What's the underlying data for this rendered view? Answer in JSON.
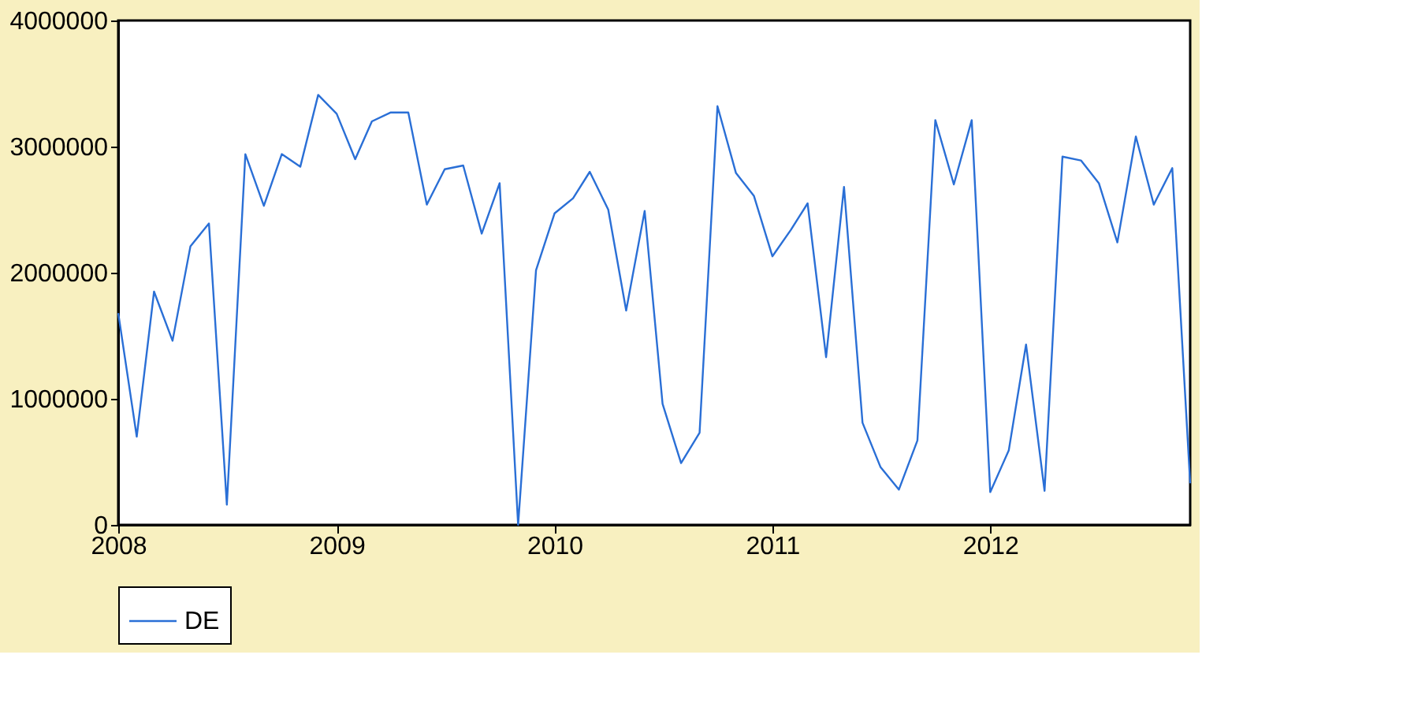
{
  "chart_data": {
    "type": "line",
    "x": [
      "2008-01",
      "2008-02",
      "2008-03",
      "2008-04",
      "2008-05",
      "2008-06",
      "2008-07",
      "2008-08",
      "2008-09",
      "2008-10",
      "2008-11",
      "2008-12",
      "2009-01",
      "2009-02",
      "2009-03",
      "2009-04",
      "2009-05",
      "2009-06",
      "2009-07",
      "2009-08",
      "2009-09",
      "2009-10",
      "2009-11",
      "2009-12",
      "2010-01",
      "2010-02",
      "2010-03",
      "2010-04",
      "2010-05",
      "2010-06",
      "2010-07",
      "2010-08",
      "2010-09",
      "2010-10",
      "2010-11",
      "2010-12",
      "2011-01",
      "2011-02",
      "2011-03",
      "2011-04",
      "2011-05",
      "2011-06",
      "2011-07",
      "2011-08",
      "2011-09",
      "2011-10",
      "2011-11",
      "2011-12",
      "2012-01",
      "2012-02",
      "2012-03",
      "2012-04",
      "2012-05",
      "2012-06",
      "2012-07",
      "2012-08",
      "2012-09",
      "2012-10",
      "2012-11",
      "2012-12"
    ],
    "series": [
      {
        "name": "DE",
        "color": "#2a6fd6",
        "values": [
          1680000,
          700000,
          1850000,
          1460000,
          2210000,
          2390000,
          160000,
          2940000,
          2530000,
          2940000,
          2840000,
          3410000,
          3260000,
          2900000,
          3200000,
          3270000,
          3270000,
          2540000,
          2820000,
          2850000,
          2310000,
          2710000,
          0,
          2020000,
          2470000,
          2590000,
          2800000,
          2500000,
          1700000,
          2490000,
          960000,
          490000,
          730000,
          3320000,
          2790000,
          2610000,
          2130000,
          2340000,
          2550000,
          1330000,
          2680000,
          810000,
          460000,
          280000,
          670000,
          3210000,
          2700000,
          3210000,
          260000,
          590000,
          1430000,
          270000,
          2920000,
          2890000,
          2710000,
          2240000,
          3080000,
          2540000,
          2830000,
          330000
        ]
      }
    ],
    "xlim": [
      "2008-01",
      "2012-12"
    ],
    "xticks": [
      {
        "value": "2008-01",
        "label": "2008"
      },
      {
        "value": "2009-01",
        "label": "2009"
      },
      {
        "value": "2010-01",
        "label": "2010"
      },
      {
        "value": "2011-01",
        "label": "2011"
      },
      {
        "value": "2012-01",
        "label": "2012"
      }
    ],
    "ylim": [
      0,
      4000000
    ],
    "yticks": [
      0,
      1000000,
      2000000,
      3000000,
      4000000
    ],
    "grid": false,
    "legend": "bottom",
    "line_style": "solid"
  }
}
